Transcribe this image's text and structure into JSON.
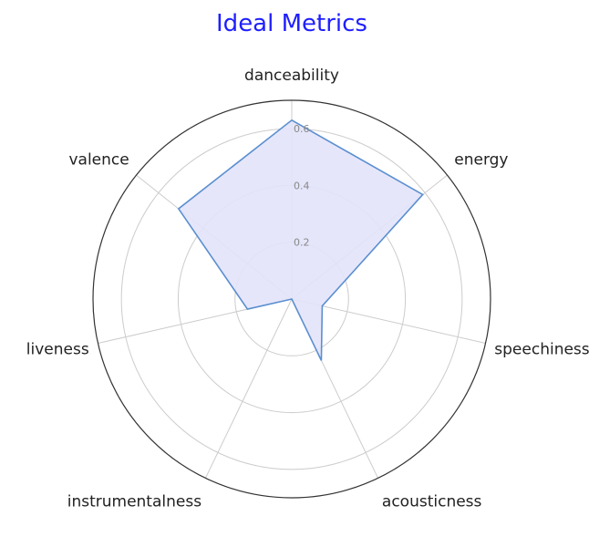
{
  "chart_data": {
    "type": "radar",
    "title": "Ideal Metrics",
    "categories": [
      "danceability",
      "energy",
      "speechiness",
      "acousticness",
      "instrumentalness",
      "liveness",
      "valence"
    ],
    "series": [
      {
        "values": [
          0.63,
          0.59,
          0.11,
          0.24,
          0.0,
          0.16,
          0.51
        ]
      }
    ],
    "rlim": [
      0,
      0.7
    ],
    "rticks": [
      0.2,
      0.4,
      0.6
    ],
    "rtick_labels": [
      "0.2",
      "0.4",
      "0.6"
    ],
    "grid": true,
    "colors": {
      "title": "#1f1fff",
      "line": "#5b8fd0",
      "fill": "#e3e3fb",
      "grid": "#cccccc",
      "outer": "#333333"
    }
  }
}
